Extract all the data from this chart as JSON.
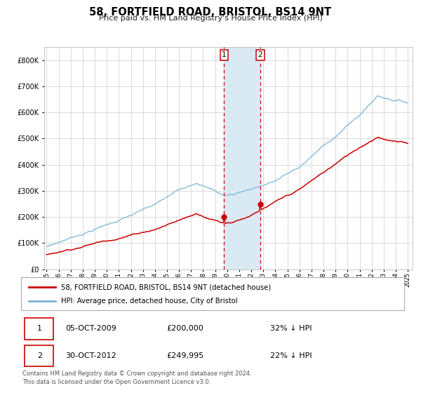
{
  "title": "58, FORTFIELD ROAD, BRISTOL, BS14 9NT",
  "subtitle": "Price paid vs. HM Land Registry's House Price Index (HPI)",
  "hpi_label": "HPI: Average price, detached house, City of Bristol",
  "property_label": "58, FORTFIELD ROAD, BRISTOL, BS14 9NT (detached house)",
  "transaction1_date": "05-OCT-2009",
  "transaction1_price": 200000,
  "transaction1_pct": "32% ↓ HPI",
  "transaction2_date": "30-OCT-2012",
  "transaction2_price": 249995,
  "transaction2_pct": "22% ↓ HPI",
  "footer": "Contains HM Land Registry data © Crown copyright and database right 2024.\nThis data is licensed under the Open Government Licence v3.0.",
  "hpi_color": "#7ab4d8",
  "property_color": "#cc0000",
  "highlight_color": "#daeaf5",
  "vline_color": "#cc0000",
  "ylim_max": 850000,
  "ylabel_ticks": [
    0,
    100000,
    200000,
    300000,
    400000,
    500000,
    600000,
    700000,
    800000
  ],
  "start_year": 1995,
  "end_year": 2025
}
